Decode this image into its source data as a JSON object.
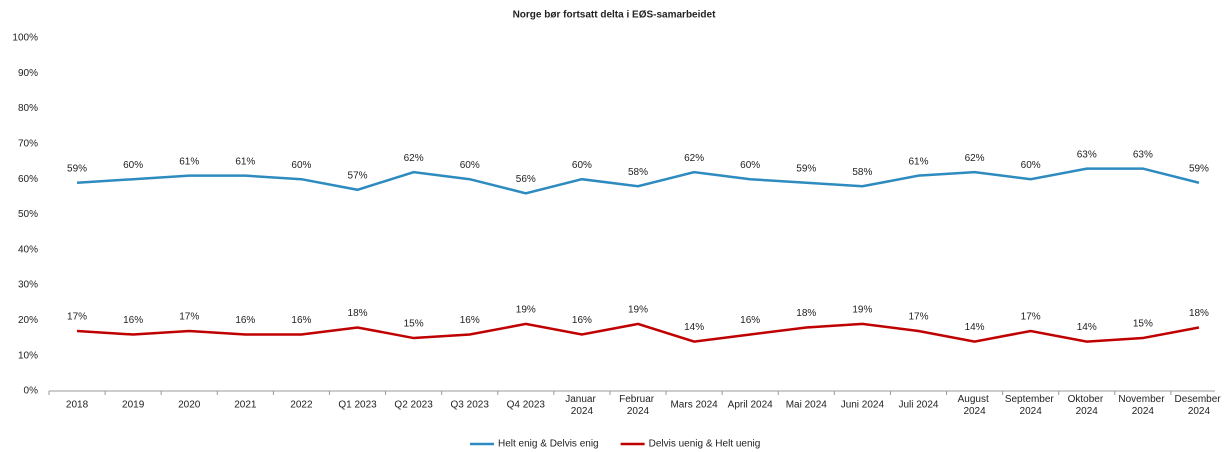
{
  "chart_data": {
    "type": "line",
    "title": "Norge bør fortsatt delta i EØS-samarbeidet",
    "categories": [
      "2018",
      "2019",
      "2020",
      "2021",
      "2022",
      "Q1 2023",
      "Q2 2023",
      "Q3 2023",
      "Q4 2023",
      "Januar 2024",
      "Februar 2024",
      "Mars 2024",
      "April 2024",
      "Mai 2024",
      "Juni 2024",
      "Juli 2024",
      "August 2024",
      "September 2024",
      "Oktober 2024",
      "November 2024",
      "Desember 2024"
    ],
    "series": [
      {
        "name": "Helt enig & Delvis enig",
        "color": "#2e8bc0",
        "values": [
          59,
          60,
          61,
          61,
          60,
          57,
          62,
          60,
          56,
          60,
          58,
          62,
          60,
          59,
          58,
          61,
          62,
          60,
          63,
          63,
          59
        ],
        "value_labels": [
          "59%",
          "60%",
          "61%",
          "61%",
          "60%",
          "57%",
          "62%",
          "60%",
          "56%",
          "60%",
          "58%",
          "62%",
          "60%",
          "59%",
          "58%",
          "61%",
          "62%",
          "60%",
          "63%",
          "63%",
          "59%"
        ]
      },
      {
        "name": "Delvis uenig & Helt uenig",
        "color": "#c00000",
        "values": [
          17,
          16,
          17,
          16,
          16,
          18,
          15,
          16,
          19,
          16,
          19,
          14,
          16,
          18,
          19,
          17,
          14,
          17,
          14,
          15,
          18
        ],
        "value_labels": [
          "17%",
          "16%",
          "17%",
          "16%",
          "16%",
          "18%",
          "15%",
          "16%",
          "19%",
          "16%",
          "19%",
          "14%",
          "16%",
          "18%",
          "19%",
          "17%",
          "14%",
          "17%",
          "14%",
          "15%",
          "18%"
        ]
      }
    ],
    "ylim": [
      0,
      100
    ],
    "yticks": [
      {
        "value": 0,
        "label": "0%"
      },
      {
        "value": 10,
        "label": "10%"
      },
      {
        "value": 20,
        "label": "20%"
      },
      {
        "value": 30,
        "label": "30%"
      },
      {
        "value": 40,
        "label": "40%"
      },
      {
        "value": 50,
        "label": "50%"
      },
      {
        "value": 60,
        "label": "60%"
      },
      {
        "value": 70,
        "label": "70%"
      },
      {
        "value": 80,
        "label": "80%"
      },
      {
        "value": 90,
        "label": "90%"
      },
      {
        "value": 100,
        "label": "100%"
      }
    ],
    "legend": "bottom"
  }
}
